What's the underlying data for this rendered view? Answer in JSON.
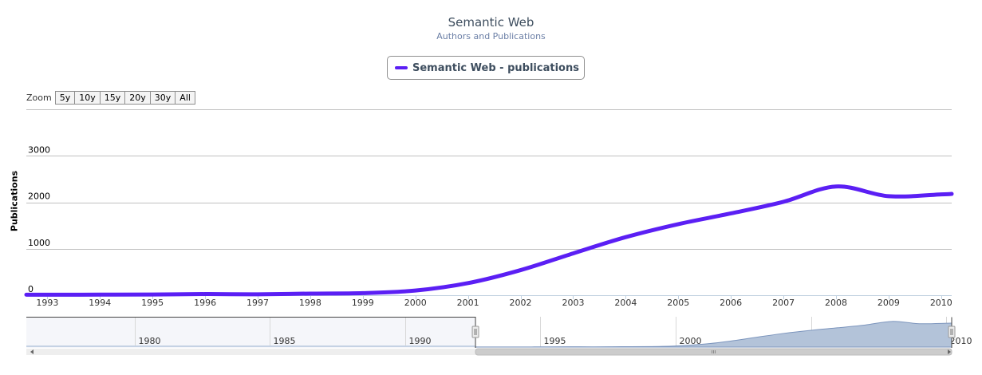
{
  "title": "Semantic Web",
  "subtitle": "Authors and Publications",
  "legend": {
    "label": "Semantic Web - publications",
    "color": "#5b1ff4"
  },
  "zoom": {
    "label": "Zoom",
    "buttons": [
      "5y",
      "10y",
      "15y",
      "20y",
      "30y",
      "All"
    ]
  },
  "chart_data": {
    "type": "line",
    "title": "Semantic Web",
    "subtitle": "Authors and Publications",
    "ylabel": "Publications",
    "xlabel": "",
    "ylim": [
      0,
      4000
    ],
    "xlim": [
      1992.6,
      2010.2
    ],
    "yticks": [
      0,
      1000,
      2000,
      3000
    ],
    "xticks": [
      1993,
      1994,
      1995,
      1996,
      1997,
      1998,
      1999,
      2000,
      2001,
      2002,
      2003,
      2004,
      2005,
      2006,
      2007,
      2008,
      2009,
      2010
    ],
    "grid": true,
    "legend_position": "top-center",
    "series": [
      {
        "name": "Semantic Web - publications",
        "color": "#5b1ff4",
        "x": [
          1992.6,
          1993,
          1994,
          1995,
          1996,
          1997,
          1998,
          1999,
          2000,
          2001,
          2002,
          2003,
          2004,
          2005,
          2006,
          2007,
          2008,
          2009,
          2010,
          2010.2
        ],
        "y": [
          10,
          10,
          12,
          15,
          25,
          20,
          35,
          45,
          100,
          260,
          540,
          900,
          1250,
          1530,
          1760,
          2010,
          2340,
          2130,
          2170,
          2180
        ]
      }
    ],
    "navigator": {
      "xticks": [
        1980,
        1985,
        1990,
        1995,
        2000,
        2005,
        2010
      ],
      "range": [
        1976,
        2010.2
      ],
      "selected": [
        1992.6,
        2010.2
      ],
      "series_y": [
        0,
        0,
        0,
        0,
        0,
        0,
        0,
        0,
        0,
        0,
        0,
        0,
        0,
        0,
        0,
        0,
        0,
        0,
        0,
        0
      ]
    }
  }
}
